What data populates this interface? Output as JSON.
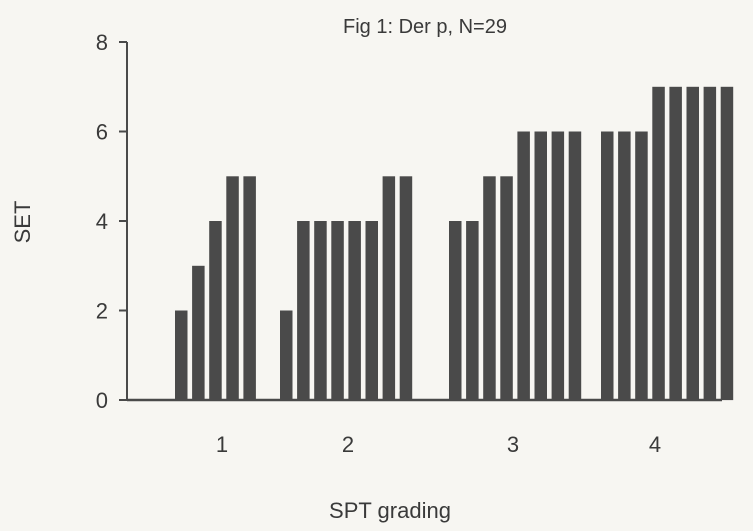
{
  "chart_data": {
    "type": "bar",
    "title": "Fig 1: Der p, N=29",
    "xlabel": "SPT grading",
    "ylabel": "SET",
    "ylim": [
      0,
      8
    ],
    "yticks": [
      0,
      2,
      4,
      6,
      8
    ],
    "grid": false,
    "legend": "none",
    "bar_color": "#4a4a4a",
    "axis_color": "#4a4a4a",
    "groups": [
      {
        "label": "1",
        "values": [
          2,
          3,
          4,
          5,
          5
        ]
      },
      {
        "label": "2",
        "values": [
          2,
          4,
          4,
          4,
          4,
          4,
          5,
          5
        ]
      },
      {
        "label": "3",
        "values": [
          4,
          4,
          5,
          5,
          6,
          6,
          6,
          6
        ]
      },
      {
        "label": "4",
        "values": [
          6,
          6,
          6,
          7,
          7,
          7,
          7,
          7
        ]
      }
    ]
  }
}
